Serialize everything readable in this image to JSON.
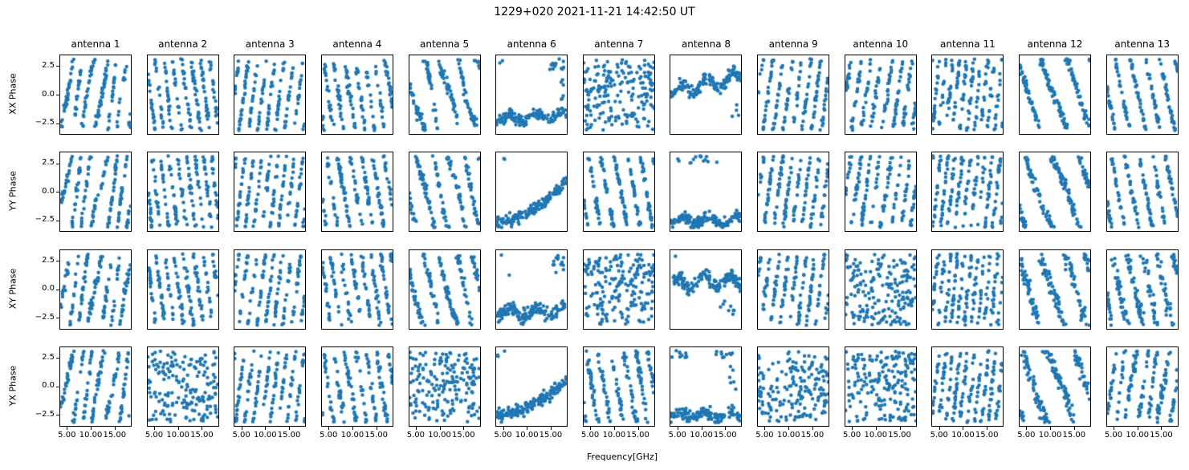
{
  "title": "1229+020 2021-11-21 14:42:50 UT",
  "colors": {
    "point": "#1f77b4",
    "axis": "#000000",
    "background": "#ffffff"
  },
  "chart_data": {
    "type": "scatter",
    "grid": {
      "rows": 4,
      "cols": 13
    },
    "title": "1229+020 2021-11-21 14:42:50 UT",
    "row_labels": [
      "XX Phase",
      "YY Phase",
      "XY Phase",
      "YX Phase"
    ],
    "col_labels": [
      "antenna 1",
      "antenna 2",
      "antenna 3",
      "antenna 4",
      "antenna 5",
      "antenna 6",
      "antenna 7",
      "antenna 8",
      "antenna 9",
      "antenna 10",
      "antenna 11",
      "antenna 12",
      "antenna 13"
    ],
    "xlabel": "Frequency[GHz]",
    "x_ticks": [
      5.0,
      10.0,
      15.0
    ],
    "x_tick_labels": [
      "5.00",
      "10.00",
      "15.00"
    ],
    "y_ticks": [
      2.5,
      0.0,
      -2.5
    ],
    "y_tick_labels": [
      "2.5",
      "0.0",
      "−2.5"
    ],
    "xlim": [
      3.6,
      18.4
    ],
    "ylim": [
      -3.45,
      3.45
    ],
    "point_color": "#1f77b4",
    "legend": null,
    "grid_lines": false,
    "panel_notes": "phase (radians, wrapped to ±π) vs frequency per antenna and polarization product",
    "panels": [
      {
        "p": "w",
        "s": 2.6,
        "o": 0.2,
        "wg": 1.1,
        "wf": 0.85,
        "nz": 0.3,
        "seed": 101
      },
      {
        "p": "w",
        "s": -3.3,
        "o": 1.0,
        "wg": 0.4,
        "wf": 0.5,
        "nz": 0.38,
        "seed": 102,
        "N": 180
      },
      {
        "p": "w",
        "s": 3.3,
        "o": 0.5,
        "wg": 0.3,
        "wf": 0.6,
        "nz": 0.26,
        "seed": 103
      },
      {
        "p": "w",
        "s": -2.9,
        "o": 2.0,
        "wg": 0.5,
        "wf": 0.7,
        "nz": 0.4,
        "seed": 104
      },
      {
        "p": "w",
        "s": -1.7,
        "o": 1.5,
        "wg": 0.8,
        "wf": 1.1,
        "nz": 0.3,
        "seed": 105
      },
      {
        "p": "b",
        "l": -2.15,
        "wg": 0.35,
        "sl": 0.02,
        "o": 0.4,
        "nz": 0.22,
        "seed": 106,
        "N": 150,
        "out": [
          [
            14.8,
            17.8,
            2.2,
            3.2,
            14
          ],
          [
            4.0,
            5.6,
            2.7,
            3.1,
            2
          ],
          [
            16.5,
            18.2,
            -0.5,
            1.5,
            6
          ]
        ]
      },
      {
        "p": "u",
        "N": 200,
        "seed": 107
      },
      {
        "p": "b",
        "l": 0.25,
        "wg": 0.5,
        "sl": 0.09,
        "o": 1.2,
        "nz": 0.28,
        "seed": 108,
        "N": 160,
        "out": [
          [
            16.0,
            18.0,
            -2.0,
            -0.8,
            4
          ]
        ]
      },
      {
        "p": "w",
        "s": 3.1,
        "o": 1.0,
        "wg": 0.3,
        "wf": 0.5,
        "nz": 0.33,
        "seed": 109
      },
      {
        "p": "w",
        "s": 2.9,
        "o": 2.0,
        "wg": 0.4,
        "wf": 0.8,
        "nz": 0.42,
        "seed": 110
      },
      {
        "p": "w",
        "s": 4.3,
        "o": 0.3,
        "wg": 0.3,
        "wf": 0.9,
        "nz": 0.5,
        "seed": 111,
        "N": 190
      },
      {
        "p": "w",
        "s": -1.2,
        "o": 0.3,
        "wg": 0.3,
        "wf": 0.6,
        "nz": 0.28,
        "seed": 112
      },
      {
        "p": "w",
        "s": -2.0,
        "o": 1.2,
        "wg": 0.25,
        "wf": 0.7,
        "nz": 0.24,
        "seed": 113
      },
      {
        "p": "w",
        "s": 2.5,
        "o": 2.0,
        "wg": 1.3,
        "wf": 0.8,
        "nz": 0.3,
        "seed": 201
      },
      {
        "p": "w",
        "s": -3.5,
        "o": 0.0,
        "wg": 0.4,
        "wf": 0.6,
        "nz": 0.4,
        "seed": 202,
        "N": 180
      },
      {
        "p": "w",
        "s": 3.6,
        "o": 1.0,
        "wg": 0.3,
        "wf": 0.5,
        "nz": 0.28,
        "seed": 203
      },
      {
        "p": "w",
        "s": -2.6,
        "o": 2.5,
        "wg": 0.4,
        "wf": 0.7,
        "nz": 0.35,
        "seed": 204
      },
      {
        "p": "w",
        "s": -1.9,
        "o": 0.5,
        "wg": 0.6,
        "wf": 1.0,
        "nz": 0.3,
        "seed": 205
      },
      {
        "p": "r",
        "a": -2.7,
        "b": 0.9,
        "pw": 1.8,
        "nz": 0.25,
        "seed": 206,
        "N": 160,
        "out": [
          [
            4.0,
            6.0,
            2.8,
            3.2,
            2
          ]
        ]
      },
      {
        "p": "w",
        "s": -2.3,
        "o": 1.0,
        "wg": 0.3,
        "wf": 0.6,
        "nz": 0.3,
        "seed": 207,
        "N": 185
      },
      {
        "p": "b",
        "l": -2.55,
        "wg": 0.3,
        "sl": 0.0,
        "o": 0.8,
        "nz": 0.22,
        "seed": 208,
        "N": 150,
        "out": [
          [
            7.5,
            13.5,
            2.5,
            3.2,
            12
          ],
          [
            5.0,
            6.0,
            2.6,
            3.0,
            2
          ]
        ]
      },
      {
        "p": "w",
        "s": 3.2,
        "o": 0.0,
        "wg": 0.3,
        "wf": 0.5,
        "nz": 0.35,
        "seed": 209
      },
      {
        "p": "w",
        "s": 3.0,
        "o": 1.5,
        "wg": 0.4,
        "wf": 0.8,
        "nz": 0.4,
        "seed": 210
      },
      {
        "p": "w",
        "s": 4.0,
        "o": 0.7,
        "wg": 0.3,
        "wf": 0.9,
        "nz": 0.45,
        "seed": 211,
        "N": 190
      },
      {
        "p": "w",
        "s": -1.1,
        "o": 2.0,
        "wg": 0.35,
        "wf": 0.6,
        "nz": 0.3,
        "seed": 212
      },
      {
        "p": "w",
        "s": -2.2,
        "o": 0.5,
        "wg": 0.25,
        "wf": 0.7,
        "nz": 0.25,
        "seed": 213
      },
      {
        "p": "w",
        "s": 2.8,
        "o": 1.0,
        "wg": 1.0,
        "wf": 0.85,
        "nz": 0.35,
        "seed": 301
      },
      {
        "p": "w",
        "s": -3.2,
        "o": 1.2,
        "wg": 0.4,
        "wf": 0.5,
        "nz": 0.4,
        "seed": 302,
        "N": 180
      },
      {
        "p": "w",
        "s": 3.4,
        "o": 0.3,
        "wg": 0.3,
        "wf": 0.6,
        "nz": 0.3,
        "seed": 303
      },
      {
        "p": "w",
        "s": -3.0,
        "o": 0.8,
        "wg": 0.5,
        "wf": 0.7,
        "nz": 0.45,
        "seed": 304
      },
      {
        "p": "w",
        "s": -1.8,
        "o": 2.0,
        "wg": 0.5,
        "wf": 1.0,
        "nz": 0.35,
        "seed": 305
      },
      {
        "p": "b",
        "l": -1.95,
        "wg": 0.4,
        "sl": 0.0,
        "o": 0.2,
        "nz": 0.28,
        "seed": 306,
        "N": 150,
        "out": [
          [
            15.2,
            17.8,
            1.2,
            3.2,
            14
          ],
          [
            4.5,
            5.5,
            2.9,
            3.1,
            1
          ],
          [
            6.0,
            7.0,
            1.2,
            1.6,
            1
          ]
        ]
      },
      {
        "p": "u",
        "N": 195,
        "seed": 307
      },
      {
        "p": "b",
        "l": 0.5,
        "wg": 0.5,
        "sl": 0.02,
        "o": 2.0,
        "nz": 0.3,
        "seed": 308,
        "N": 160,
        "out": [
          [
            13.0,
            17.5,
            -2.2,
            -0.8,
            8
          ],
          [
            4.0,
            5.0,
            2.9,
            3.1,
            1
          ]
        ]
      },
      {
        "p": "w",
        "s": 3.3,
        "o": 1.5,
        "wg": 0.3,
        "wf": 0.5,
        "nz": 0.35,
        "seed": 309
      },
      {
        "p": "u",
        "N": 190,
        "seed": 310
      },
      {
        "p": "w",
        "s": 4.5,
        "o": 0.5,
        "wg": 0.3,
        "wf": 0.9,
        "nz": 0.55,
        "seed": 311,
        "N": 195
      },
      {
        "p": "w",
        "s": -1.3,
        "o": 1.0,
        "wg": 0.3,
        "wf": 0.6,
        "nz": 0.5,
        "seed": 312
      },
      {
        "p": "w",
        "s": -2.0,
        "o": 0.0,
        "wg": 0.3,
        "wf": 0.7,
        "nz": 0.55,
        "seed": 313,
        "N": 185
      },
      {
        "p": "w",
        "s": 2.6,
        "o": 0.5,
        "wg": 1.4,
        "wf": 0.7,
        "nz": 0.3,
        "seed": 401
      },
      {
        "p": "u",
        "N": 180,
        "seed": 402
      },
      {
        "p": "w",
        "s": 3.5,
        "o": 2.0,
        "wg": 0.3,
        "wf": 0.5,
        "nz": 0.3,
        "seed": 403
      },
      {
        "p": "w",
        "s": -2.8,
        "o": 1.5,
        "wg": 0.4,
        "wf": 0.7,
        "nz": 0.4,
        "seed": 404
      },
      {
        "p": "u",
        "N": 190,
        "seed": 405
      },
      {
        "p": "r",
        "a": -2.6,
        "b": 0.6,
        "pw": 1.7,
        "nz": 0.3,
        "seed": 406,
        "N": 160,
        "out": [
          [
            3.8,
            6.5,
            2.6,
            3.2,
            3
          ]
        ]
      },
      {
        "p": "w",
        "s": -2.4,
        "o": 0.3,
        "wg": 0.3,
        "wf": 0.6,
        "nz": 0.45,
        "seed": 407,
        "N": 185
      },
      {
        "p": "b",
        "l": -2.5,
        "wg": 0.3,
        "sl": 0.0,
        "o": 1.5,
        "nz": 0.25,
        "seed": 408,
        "N": 145,
        "out": [
          [
            3.8,
            7.5,
            2.5,
            3.2,
            10
          ],
          [
            13.0,
            17.0,
            2.3,
            3.2,
            10
          ],
          [
            15.0,
            17.5,
            -0.5,
            1.8,
            6
          ]
        ]
      },
      {
        "p": "u",
        "N": 190,
        "seed": 409
      },
      {
        "p": "u",
        "N": 200,
        "seed": 410
      },
      {
        "p": "w",
        "s": 4.2,
        "o": 1.0,
        "wg": 0.3,
        "wf": 0.9,
        "nz": 0.5,
        "seed": 411,
        "N": 195
      },
      {
        "p": "w",
        "s": -1.15,
        "o": 1.5,
        "wg": 0.35,
        "wf": 0.6,
        "nz": 0.45,
        "seed": 412
      },
      {
        "p": "w",
        "s": 2.8,
        "o": 0.8,
        "wg": 0.9,
        "wf": 1.0,
        "nz": 0.4,
        "seed": 413,
        "N": 185
      }
    ]
  }
}
